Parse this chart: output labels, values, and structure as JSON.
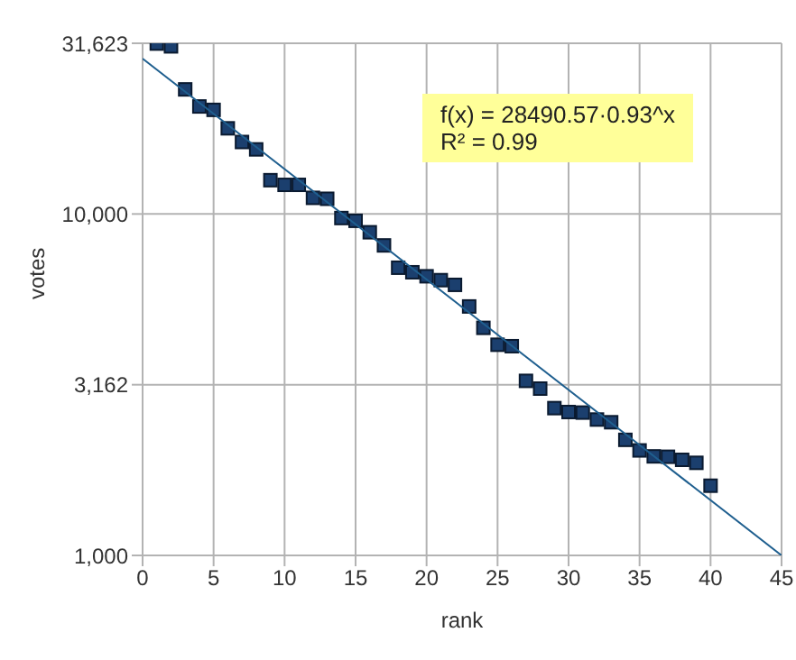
{
  "chart_data": {
    "type": "scatter",
    "xlabel": "rank",
    "ylabel": "votes",
    "log": "y",
    "grid": true,
    "xlim": [
      0,
      45
    ],
    "xticks": [
      0,
      5,
      10,
      15,
      20,
      25,
      30,
      35,
      40,
      45
    ],
    "ylim": [
      1000,
      31623
    ],
    "yticks": [
      {
        "value": 1000,
        "label": "1,000"
      },
      {
        "value": 3162,
        "label": "3,162"
      },
      {
        "value": 10000,
        "label": "10,000"
      },
      {
        "value": 31623,
        "label": "31,623"
      }
    ],
    "annotations": [
      "f(x) = 28490.57·0.93^x",
      "R² = 0.99"
    ],
    "series": [
      {
        "color": "#1b3f6e",
        "marker": "square",
        "x": [
          1,
          2,
          3,
          4,
          5,
          6,
          7,
          8,
          9,
          10,
          11,
          12,
          13,
          14,
          15,
          16,
          17,
          18,
          19,
          20,
          21,
          22,
          23,
          24,
          25,
          26,
          27,
          28,
          29,
          30,
          31,
          32,
          33,
          34,
          35,
          36,
          37,
          38,
          39,
          40
        ],
        "values": [
          31560,
          30970,
          23170,
          20650,
          20180,
          17820,
          16250,
          15460,
          12560,
          12170,
          12170,
          11150,
          11080,
          9730,
          9550,
          8840,
          8090,
          6960,
          6750,
          6570,
          6400,
          6200,
          5360,
          4640,
          4140,
          4100,
          3245,
          3080,
          2700,
          2630,
          2620,
          2500,
          2455,
          2180,
          2030,
          1950,
          1945,
          1905,
          1867,
          1600
        ]
      },
      {
        "type": "line",
        "color": "#1f5f8f",
        "marker": "none",
        "x": [
          0,
          45
        ],
        "values": [
          28500,
          1000
        ]
      }
    ]
  }
}
